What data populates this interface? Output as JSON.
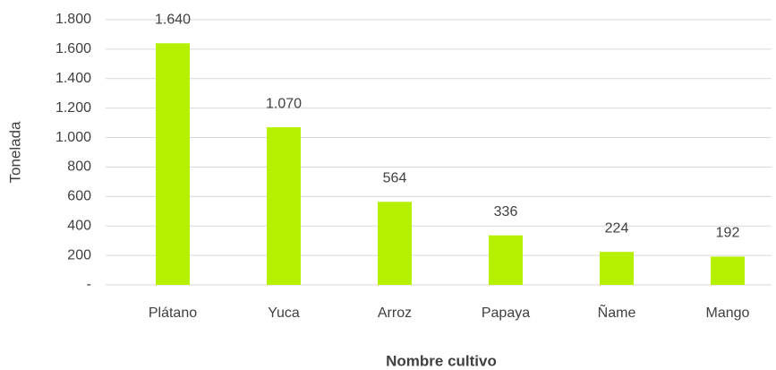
{
  "chart_data": {
    "type": "bar",
    "x_label": "Nombre cultivo",
    "y_label": "Tonelada",
    "categories": [
      "Plátano",
      "Yuca",
      "Arroz",
      "Papaya",
      "Ñame",
      "Mango"
    ],
    "values": [
      1640,
      1070,
      564,
      336,
      224,
      192
    ],
    "value_labels": [
      "1.640",
      "1.070",
      "564",
      "336",
      "224",
      "192"
    ],
    "color": "#b4f000",
    "ylim": [
      0,
      1800
    ],
    "yticks": [
      {
        "value": 0,
        "label": "-"
      },
      200,
      400,
      600,
      800,
      {
        "value": 1000,
        "label": "1.000"
      },
      {
        "value": 1200,
        "label": "1.200"
      },
      {
        "value": 1400,
        "label": "1.400"
      },
      {
        "value": 1600,
        "label": "1.600"
      },
      {
        "value": 1800,
        "label": "1.800"
      }
    ],
    "grid": true
  }
}
